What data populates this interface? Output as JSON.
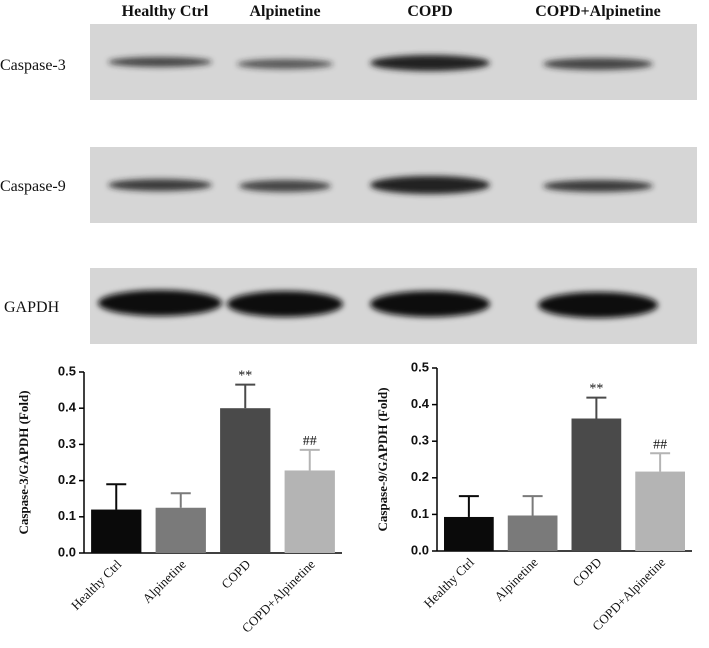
{
  "blot": {
    "lanes": [
      "Healthy Ctrl",
      "Alpinetine",
      "COPD",
      "COPD+Alpinetine"
    ],
    "rows": [
      "Caspase-3",
      "Caspase-9",
      "GAPDH"
    ]
  },
  "chart_data": [
    {
      "type": "bar",
      "ylabel": "Caspase-3/GAPDH (Fold)",
      "categories": [
        "Healthy Ctrl",
        "Alpinetine",
        "COPD",
        "COPD+Alpinetine"
      ],
      "values": [
        0.12,
        0.125,
        0.4,
        0.228
      ],
      "errors": [
        0.07,
        0.04,
        0.065,
        0.057
      ],
      "colors": [
        "#0a0a0a",
        "#7a7a7a",
        "#4a4a4a",
        "#b4b4b4"
      ],
      "significance": [
        null,
        null,
        "**",
        "##"
      ],
      "ylim": [
        0,
        0.5
      ],
      "yticks": [
        {
          "value": 0,
          "label": "0.0"
        },
        0.1,
        0.2,
        0.3,
        0.4,
        0.5
      ]
    },
    {
      "type": "bar",
      "ylabel": "Caspase-9/GAPDH (Fold)",
      "categories": [
        "Healthy Ctrl",
        "Alpinetine",
        "COPD",
        "COPD+Alpinetine"
      ],
      "values": [
        0.093,
        0.097,
        0.362,
        0.217
      ],
      "errors": [
        0.057,
        0.053,
        0.057,
        0.05
      ],
      "colors": [
        "#0a0a0a",
        "#7a7a7a",
        "#4a4a4a",
        "#b4b4b4"
      ],
      "significance": [
        null,
        null,
        "**",
        "##"
      ],
      "ylim": [
        0,
        0.5
      ],
      "yticks": [
        {
          "value": 0,
          "label": "0.0"
        },
        0.1,
        0.2,
        0.3,
        0.4,
        0.5
      ]
    }
  ]
}
